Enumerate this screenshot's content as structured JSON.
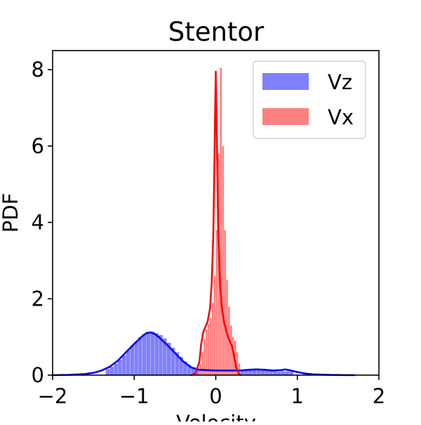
{
  "chart_data": {
    "type": "area",
    "title": "Stentor",
    "xlabel": "Velocity",
    "ylabel": "PDF",
    "xlim": [
      -2,
      2
    ],
    "ylim": [
      0,
      8.5
    ],
    "xticks": [
      "−2",
      "−1",
      "0",
      "1",
      "2"
    ],
    "xtick_values": [
      -2,
      -1,
      0,
      1,
      2
    ],
    "yticks": [
      "0",
      "2",
      "4",
      "6",
      "8"
    ],
    "ytick_values": [
      0,
      2,
      4,
      6,
      8
    ],
    "grid": false,
    "legend_position": "top-right",
    "series": [
      {
        "name": "Vz",
        "color": "#0000ff",
        "fill_color": "#8080ff",
        "hist": {
          "bin_start": -1.35,
          "bin_width": 0.05,
          "values": [
            0.16,
            0.22,
            0.3,
            0.4,
            0.52,
            0.64,
            0.77,
            0.88,
            1.0,
            1.08,
            1.12,
            1.14,
            1.1,
            1.05,
            0.96,
            0.85,
            0.72,
            0.6,
            0.48,
            0.36,
            0.27,
            0.2,
            0.15,
            0.13,
            0.12,
            0.12,
            0.12,
            0.11,
            0.11,
            0.12,
            0.12,
            0.12,
            0.13,
            0.14,
            0.14,
            0.15,
            0.15,
            0.15,
            0.14,
            0.13,
            0.11,
            0.1,
            0.09,
            0.1,
            0.1,
            0.09
          ]
        },
        "kde": {
          "x": [
            -2.0,
            -1.8,
            -1.6,
            -1.5,
            -1.4,
            -1.3,
            -1.2,
            -1.1,
            -1.0,
            -0.9,
            -0.85,
            -0.8,
            -0.75,
            -0.7,
            -0.6,
            -0.5,
            -0.4,
            -0.3,
            -0.2,
            -0.1,
            0.0,
            0.1,
            0.2,
            0.3,
            0.4,
            0.5,
            0.6,
            0.7,
            0.8,
            0.85,
            0.9,
            1.0,
            1.1,
            1.2,
            1.4,
            1.6,
            1.7
          ],
          "y": [
            0.0,
            0.005,
            0.03,
            0.06,
            0.12,
            0.22,
            0.38,
            0.6,
            0.82,
            1.02,
            1.1,
            1.12,
            1.08,
            1.0,
            0.8,
            0.58,
            0.36,
            0.2,
            0.14,
            0.13,
            0.12,
            0.12,
            0.12,
            0.12,
            0.14,
            0.15,
            0.14,
            0.12,
            0.13,
            0.15,
            0.13,
            0.08,
            0.04,
            0.02,
            0.005,
            0.0,
            0.0
          ]
        }
      },
      {
        "name": "Vx",
        "color": "#ff0000",
        "fill_color": "#ff8080",
        "hist": {
          "bin_start": -0.2,
          "bin_width": 0.025,
          "values": [
            0.3,
            0.6,
            0.95,
            1.2,
            1.35,
            1.5,
            1.9,
            2.6,
            3.8,
            5.8,
            8.05,
            6.0,
            3.8,
            2.5,
            1.8,
            1.3,
            1.0,
            0.9,
            0.6,
            0.3
          ]
        },
        "kde": {
          "x": [
            -0.3,
            -0.25,
            -0.2,
            -0.18,
            -0.15,
            -0.12,
            -0.1,
            -0.07,
            -0.05,
            -0.03,
            -0.02,
            -0.01,
            0.0,
            0.01,
            0.02,
            0.03,
            0.05,
            0.07,
            0.1,
            0.13,
            0.15,
            0.18,
            0.2,
            0.23,
            0.25,
            0.28,
            0.3
          ],
          "y": [
            0.0,
            0.05,
            0.35,
            0.8,
            1.15,
            1.3,
            1.4,
            1.75,
            2.4,
            3.7,
            5.0,
            6.6,
            7.95,
            6.7,
            5.2,
            3.8,
            2.5,
            1.85,
            1.4,
            1.15,
            1.0,
            0.85,
            0.75,
            0.45,
            0.2,
            0.05,
            0.0
          ]
        }
      }
    ]
  }
}
